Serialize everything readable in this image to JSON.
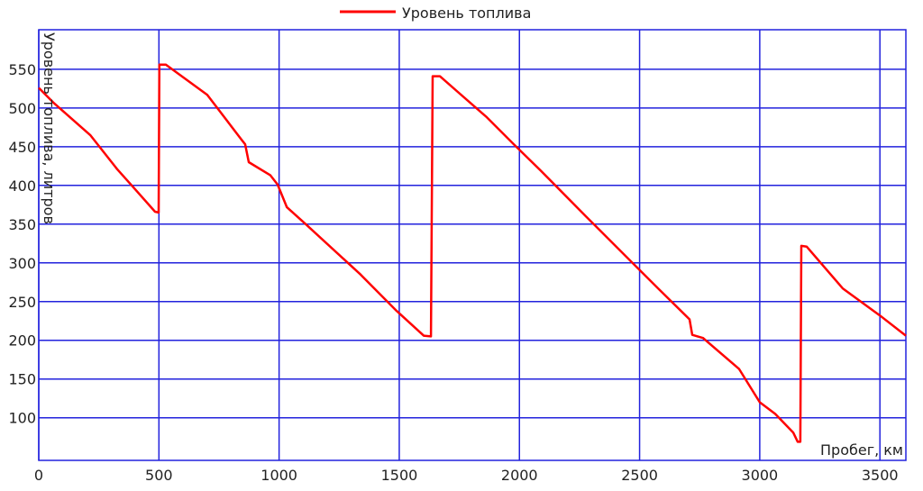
{
  "chart_data": {
    "type": "line",
    "title": "",
    "xlabel": "Пробег, км",
    "ylabel": "Уровень топлива, литров",
    "xlim": [
      0,
      3608
    ],
    "ylim": [
      45,
      601
    ],
    "xticks": [
      0,
      500,
      1000,
      1500,
      2000,
      2500,
      3000,
      3500
    ],
    "yticks": [
      100,
      150,
      200,
      250,
      300,
      350,
      400,
      450,
      500,
      550
    ],
    "grid": true,
    "legend": "top-center",
    "colors": {
      "line": "#ff0000",
      "grid": "#2222dd",
      "axis": "#2222dd"
    },
    "series": [
      {
        "name": "Уровень топлива",
        "x": [
          0,
          64,
          214,
          326,
          401,
          484,
          499,
          502,
          529,
          701,
          844,
          859,
          874,
          964,
          994,
          1032,
          1114,
          1339,
          1489,
          1602,
          1632,
          1639,
          1669,
          1864,
          1977,
          2089,
          2277,
          2464,
          2577,
          2708,
          2719,
          2764,
          2914,
          3000,
          3064,
          3139,
          3158,
          3169,
          3173,
          3195,
          3345,
          3500,
          3608
        ],
        "y": [
          526,
          506,
          465,
          421,
          395,
          366,
          365,
          556,
          556,
          517,
          459,
          453,
          430,
          413,
          401,
          372,
          349,
          285,
          238,
          206,
          205,
          541,
          541,
          488,
          453,
          419,
          360,
          302,
          267,
          227,
          207,
          203,
          163,
          120,
          105,
          81,
          69,
          69,
          322,
          321,
          267,
          232,
          206
        ]
      }
    ]
  }
}
